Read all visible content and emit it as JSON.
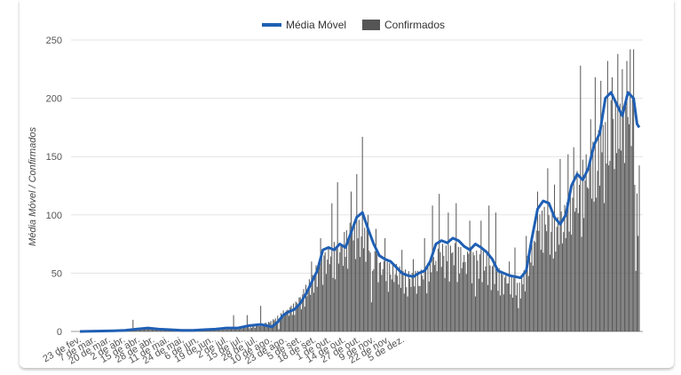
{
  "chart_data": {
    "type": "bar",
    "title": "",
    "ylabel": "Média Móvel / Confirmados",
    "ylim": [
      0,
      250
    ],
    "yticks": [
      0,
      50,
      100,
      150,
      200,
      250
    ],
    "start_date": "2020-02-23",
    "categories": [
      "23 de fev.",
      "7 de mar.",
      "20 de mar.",
      "2 de abr.",
      "15 de abr.",
      "28 de abr.",
      "11 de mai.",
      "24 de mai.",
      "6 de jun.",
      "19 de jun.",
      "2 de jul.",
      "15 de jul.",
      "28 de jul.",
      "10 de ago.",
      "23 de ago.",
      "5 de set.",
      "18 de set.",
      "1 de out.",
      "14 de out.",
      "27 de out.",
      "9 de nov.",
      "22 de nov.",
      "5 de dez."
    ],
    "grid": true,
    "legend_position": "top",
    "series": [
      {
        "name": "Média Móvel",
        "kind": "line",
        "color": "#1f5fb4",
        "points": [
          [
            0,
            0
          ],
          [
            30,
            0.5
          ],
          [
            40,
            1
          ],
          [
            50,
            2
          ],
          [
            60,
            3
          ],
          [
            70,
            2
          ],
          [
            80,
            1.5
          ],
          [
            90,
            1
          ],
          [
            100,
            1
          ],
          [
            110,
            1.5
          ],
          [
            120,
            2
          ],
          [
            130,
            3
          ],
          [
            140,
            3
          ],
          [
            150,
            5
          ],
          [
            160,
            6
          ],
          [
            165,
            5
          ],
          [
            170,
            4
          ],
          [
            175,
            8
          ],
          [
            180,
            14
          ],
          [
            185,
            17
          ],
          [
            190,
            19
          ],
          [
            195,
            24
          ],
          [
            200,
            32
          ],
          [
            205,
            42
          ],
          [
            210,
            52
          ],
          [
            215,
            70
          ],
          [
            220,
            72
          ],
          [
            225,
            70
          ],
          [
            230,
            75
          ],
          [
            235,
            72
          ],
          [
            240,
            85
          ],
          [
            245,
            98
          ],
          [
            250,
            102
          ],
          [
            255,
            88
          ],
          [
            260,
            75
          ],
          [
            265,
            65
          ],
          [
            270,
            62
          ],
          [
            275,
            60
          ],
          [
            280,
            55
          ],
          [
            285,
            50
          ],
          [
            290,
            48
          ],
          [
            295,
            47
          ],
          [
            300,
            50
          ],
          [
            305,
            52
          ],
          [
            310,
            60
          ],
          [
            315,
            75
          ],
          [
            320,
            78
          ],
          [
            325,
            76
          ],
          [
            330,
            80
          ],
          [
            335,
            78
          ],
          [
            340,
            73
          ],
          [
            345,
            70
          ],
          [
            350,
            75
          ],
          [
            355,
            72
          ],
          [
            360,
            68
          ],
          [
            365,
            62
          ],
          [
            370,
            52
          ],
          [
            375,
            50
          ],
          [
            380,
            48
          ],
          [
            385,
            47
          ],
          [
            390,
            46
          ],
          [
            395,
            52
          ],
          [
            400,
            80
          ],
          [
            405,
            105
          ],
          [
            410,
            112
          ],
          [
            415,
            110
          ],
          [
            420,
            98
          ],
          [
            425,
            92
          ],
          [
            430,
            100
          ],
          [
            435,
            125
          ],
          [
            440,
            135
          ],
          [
            445,
            130
          ],
          [
            450,
            140
          ],
          [
            455,
            160
          ],
          [
            460,
            170
          ],
          [
            465,
            200
          ],
          [
            470,
            205
          ],
          [
            475,
            195
          ],
          [
            480,
            185
          ],
          [
            485,
            205
          ],
          [
            490,
            200
          ],
          [
            493,
            178
          ],
          [
            495,
            175
          ]
        ]
      },
      {
        "name": "Confirmados",
        "kind": "bar",
        "color": "#555555",
        "segments": [
          [
            0,
            0
          ],
          [
            20,
            0
          ],
          [
            40,
            2
          ],
          [
            60,
            3
          ],
          [
            80,
            2
          ],
          [
            100,
            2
          ],
          [
            120,
            2
          ],
          [
            140,
            3
          ],
          [
            160,
            6
          ],
          [
            170,
            10
          ],
          [
            180,
            18
          ],
          [
            190,
            25
          ],
          [
            200,
            40
          ],
          [
            210,
            60
          ],
          [
            220,
            75
          ],
          [
            230,
            80
          ],
          [
            240,
            95
          ],
          [
            250,
            100
          ],
          [
            260,
            70
          ],
          [
            270,
            60
          ],
          [
            280,
            58
          ],
          [
            290,
            52
          ],
          [
            300,
            52
          ],
          [
            310,
            62
          ],
          [
            320,
            75
          ],
          [
            330,
            78
          ],
          [
            340,
            70
          ],
          [
            350,
            72
          ],
          [
            360,
            68
          ],
          [
            370,
            55
          ],
          [
            380,
            50
          ],
          [
            390,
            45
          ],
          [
            400,
            80
          ],
          [
            410,
            110
          ],
          [
            420,
            100
          ],
          [
            430,
            110
          ],
          [
            440,
            140
          ],
          [
            450,
            155
          ],
          [
            460,
            175
          ],
          [
            470,
            200
          ],
          [
            480,
            195
          ],
          [
            490,
            200
          ],
          [
            495,
            180
          ]
        ],
        "spikes": [
          [
            47,
            10
          ],
          [
            136,
            14
          ],
          [
            148,
            14
          ],
          [
            160,
            22
          ],
          [
            205,
            60
          ],
          [
            213,
            80
          ],
          [
            223,
            110
          ],
          [
            228,
            128
          ],
          [
            240,
            120
          ],
          [
            245,
            135
          ],
          [
            250,
            167
          ],
          [
            255,
            100
          ],
          [
            262,
            88
          ],
          [
            270,
            80
          ],
          [
            285,
            70
          ],
          [
            295,
            62
          ],
          [
            305,
            80
          ],
          [
            312,
            108
          ],
          [
            318,
            118
          ],
          [
            326,
            102
          ],
          [
            333,
            110
          ],
          [
            345,
            95
          ],
          [
            355,
            95
          ],
          [
            362,
            108
          ],
          [
            368,
            102
          ],
          [
            380,
            60
          ],
          [
            385,
            72
          ],
          [
            395,
            82
          ],
          [
            405,
            120
          ],
          [
            414,
            140
          ],
          [
            420,
            126
          ],
          [
            425,
            148
          ],
          [
            432,
            152
          ],
          [
            437,
            158
          ],
          [
            443,
            228
          ],
          [
            452,
            182
          ],
          [
            456,
            218
          ],
          [
            461,
            215
          ],
          [
            467,
            232
          ],
          [
            471,
            218
          ],
          [
            476,
            238
          ],
          [
            480,
            225
          ],
          [
            484,
            232
          ],
          [
            487,
            242
          ],
          [
            490,
            242
          ],
          [
            494,
            240
          ]
        ],
        "dips": [
          [
            176,
            2
          ],
          [
            258,
            25
          ],
          [
            290,
            30
          ],
          [
            350,
            30
          ],
          [
            388,
            20
          ],
          [
            430,
            80
          ],
          [
            460,
            125
          ],
          [
            492,
            52
          ],
          [
            494,
            82
          ]
        ]
      }
    ]
  }
}
